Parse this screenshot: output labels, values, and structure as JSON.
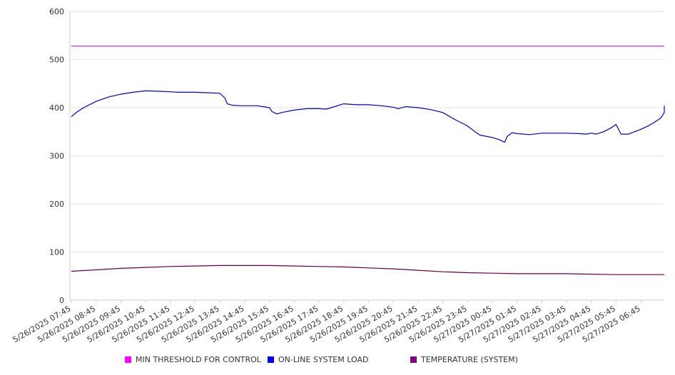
{
  "chart_data": {
    "type": "line",
    "title": "",
    "xlabel": "",
    "ylabel": "",
    "ylim": [
      0,
      600
    ],
    "yticks": [
      0,
      100,
      200,
      300,
      400,
      500,
      600
    ],
    "grid": true,
    "legend_position": "bottom",
    "x_tick_labels": [
      "5/26/2025 07:45",
      "5/26/2025 08:45",
      "5/26/2025 09:45",
      "5/26/2025 10:45",
      "5/26/2025 11:45",
      "5/26/2025 12:45",
      "5/26/2025 13:45",
      "5/26/2025 14:45",
      "5/26/2025 15:45",
      "5/26/2025 16:45",
      "5/26/2025 17:45",
      "5/26/2025 18:45",
      "5/26/2025 19:45",
      "5/26/2025 20:45",
      "5/26/2025 21:45",
      "5/26/2025 22:45",
      "5/26/2025 23:45",
      "5/27/2025 00:45",
      "5/27/2025 01:45",
      "5/27/2025 02:45",
      "5/27/2025 03:45",
      "5/27/2025 04:45",
      "5/27/2025 05:45",
      "5/27/2025 06:45"
    ],
    "series": [
      {
        "name": "MIN THRESHOLD FOR CONTROL",
        "color": "#cc33cc",
        "legend_color": "#ff00ff",
        "hours": [
          0,
          24.5
        ],
        "values": [
          528,
          528
        ]
      },
      {
        "name": "ON-LINE SYSTEM LOAD",
        "color": "#0000cc",
        "legend_color": "#0000ff",
        "hours": [
          0,
          0.2,
          0.5,
          1,
          1.5,
          2,
          2.5,
          3,
          3.5,
          4,
          4.3,
          4.6,
          5,
          5.5,
          6,
          6.2,
          6.3,
          6.5,
          6.8,
          7,
          7.5,
          8,
          8.1,
          8.3,
          8.5,
          9,
          9.5,
          10,
          10.3,
          10.5,
          11,
          11.5,
          12,
          12.5,
          13,
          13.2,
          13.5,
          14,
          14.5,
          15,
          15.5,
          16,
          16.3,
          16.5,
          17,
          17.3,
          17.5,
          17.6,
          17.8,
          18,
          18.5,
          19,
          19.5,
          20,
          20.5,
          20.8,
          21,
          21.2,
          21.5,
          21.8,
          22,
          22.2,
          22.5,
          23,
          23.3,
          23.5,
          23.8,
          24,
          24.2,
          24.5
        ],
        "values": [
          381,
          390,
          400,
          413,
          422,
          428,
          432,
          435,
          434,
          433,
          432,
          432,
          432,
          431,
          430,
          420,
          408,
          405,
          404,
          404,
          404,
          400,
          392,
          387,
          390,
          395,
          398,
          398,
          397,
          400,
          408,
          406,
          406,
          404,
          401,
          398,
          402,
          400,
          396,
          390,
          375,
          362,
          350,
          343,
          338,
          333,
          328,
          340,
          348,
          346,
          344,
          347,
          347,
          347,
          346,
          345,
          347,
          345,
          350,
          358,
          365,
          345,
          345,
          355,
          362,
          368,
          378,
          390,
          400,
          404
        ]
      },
      {
        "name": "TEMPERATURE (SYSTEM)",
        "color": "#660044",
        "legend_color": "#800080",
        "hours": [
          0,
          1,
          2,
          3,
          4,
          5,
          6,
          7,
          8,
          9,
          10,
          11,
          12,
          13,
          14,
          15,
          16,
          17,
          18,
          19,
          20,
          21,
          22,
          23,
          24,
          24.5
        ],
        "values": [
          60,
          63,
          66,
          68,
          70,
          71,
          72,
          72,
          72,
          71,
          70,
          69,
          67,
          65,
          62,
          59,
          57,
          56,
          55,
          55,
          55,
          54,
          53,
          53,
          53,
          53
        ]
      }
    ]
  }
}
